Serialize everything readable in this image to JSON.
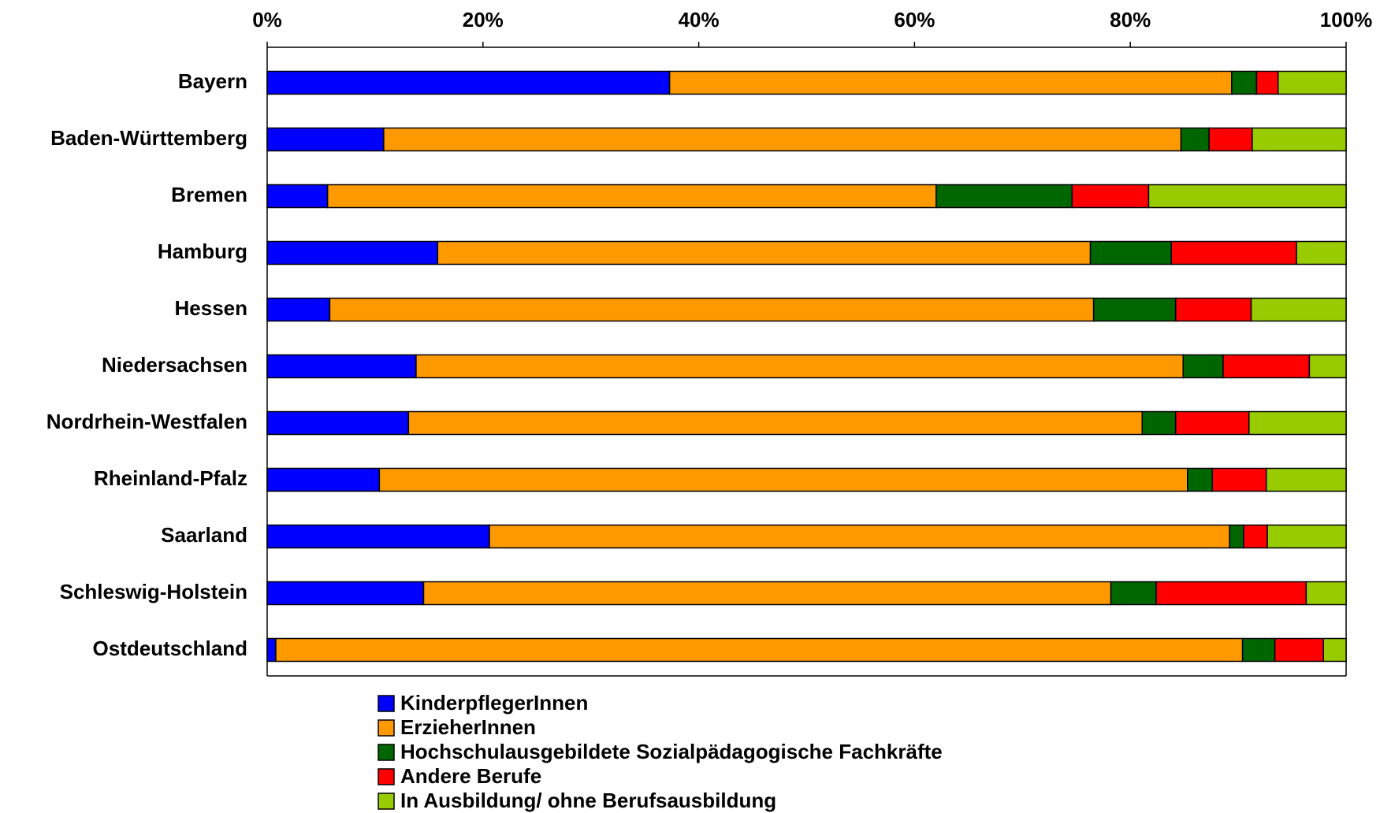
{
  "chart_data": {
    "type": "stacked-bar-horizontal",
    "categories": [
      "Bayern",
      "Baden-Württemberg",
      "Bremen",
      "Hamburg",
      "Hessen",
      "Niedersachsen",
      "Nordrhein-Westfalen",
      "Rheinland-Pfalz",
      "Saarland",
      "Schleswig-Holstein",
      "Ostdeutschland"
    ],
    "series": [
      {
        "name": "KinderpflegerInnen",
        "color": "#0000ff",
        "values": [
          37.3,
          10.8,
          5.6,
          15.8,
          5.8,
          13.8,
          13.1,
          10.4,
          20.6,
          14.5,
          0.8
        ]
      },
      {
        "name": "ErzieherInnen",
        "color": "#ff9900",
        "values": [
          52.1,
          73.9,
          56.4,
          60.5,
          70.8,
          71.1,
          68.0,
          74.9,
          68.6,
          63.7,
          89.6
        ]
      },
      {
        "name": "Hochschulausgebildete Sozialpädagogische Fachkräfte",
        "color": "#006600",
        "values": [
          2.3,
          2.6,
          12.6,
          7.5,
          7.6,
          3.7,
          3.1,
          2.3,
          1.3,
          4.2,
          3.0
        ]
      },
      {
        "name": "Andere Berufe",
        "color": "#ff0000",
        "values": [
          2.0,
          4.0,
          7.1,
          11.6,
          7.0,
          8.0,
          6.8,
          5.0,
          2.2,
          13.9,
          4.5
        ]
      },
      {
        "name": "In Ausbildung/ ohne Berufsausbildung",
        "color": "#99cc00",
        "values": [
          6.3,
          8.7,
          18.3,
          4.6,
          8.8,
          3.4,
          9.0,
          7.4,
          7.3,
          3.7,
          2.1
        ]
      }
    ],
    "xlim": [
      0,
      100
    ],
    "xticks": [
      {
        "value": 0,
        "label": "0%"
      },
      {
        "value": 20,
        "label": "20%"
      },
      {
        "value": 40,
        "label": "40%"
      },
      {
        "value": 60,
        "label": "60%"
      },
      {
        "value": 80,
        "label": "80%"
      },
      {
        "value": 100,
        "label": "100%"
      }
    ],
    "legend": "bottom"
  }
}
